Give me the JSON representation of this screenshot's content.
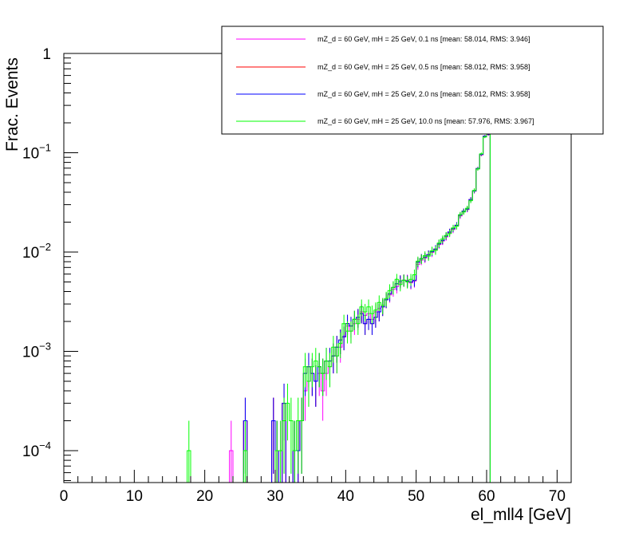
{
  "chart_data": {
    "type": "histogram",
    "xlabel": "el_mll4 [GeV]",
    "ylabel": "Frac. Events",
    "xlim": [
      0,
      72
    ],
    "ylim": [
      5e-05,
      1.2
    ],
    "yscale": "log",
    "x_ticks": [
      "0",
      "10",
      "20",
      "30",
      "40",
      "50",
      "60",
      "70"
    ],
    "y_ticks": [
      {
        "mantissa": "1",
        "exp": ""
      },
      {
        "mantissa": "10",
        "exp": "−1"
      },
      {
        "mantissa": "10",
        "exp": "−2"
      },
      {
        "mantissa": "10",
        "exp": "−3"
      },
      {
        "mantissa": "10",
        "exp": "−4"
      }
    ],
    "bin_edges_start": 0,
    "bin_width": 0.5,
    "legend": {
      "position": "top-right",
      "entries": [
        {
          "label": "mZ_d = 60 GeV, mH = 25 GeV, 0.1 ns [mean: 58.014, RMS: 3.946]",
          "color": "#ff00ff"
        },
        {
          "label": "mZ_d = 60 GeV, mH = 25 GeV, 0.5 ns [mean: 58.012, RMS: 3.958]",
          "color": "#ff0000"
        },
        {
          "label": "mZ_d = 60 GeV, mH = 25 GeV, 2.0 ns [mean: 58.012, RMS: 3.958]",
          "color": "#0000ff"
        },
        {
          "label": "mZ_d = 60 GeV, mH = 25 GeV, 10.0 ns [mean: 57.976, RMS: 3.967]",
          "color": "#00ff00"
        }
      ]
    },
    "series": [
      {
        "name": "0.1 ns",
        "color": "#ff00ff",
        "bins": [
          [
            23.5,
            0.0001
          ],
          [
            25.5,
            0.0002
          ],
          [
            29.5,
            0.0002
          ],
          [
            30.0,
            0.0001
          ],
          [
            30.5,
            0.0001
          ],
          [
            31.0,
            0.0003
          ],
          [
            32.5,
            0.0001
          ],
          [
            33.0,
            0.0001
          ],
          [
            33.5,
            0.0002
          ],
          [
            34.0,
            0.0004
          ],
          [
            34.5,
            0.0005
          ],
          [
            35.0,
            0.0006
          ],
          [
            35.5,
            0.0005
          ],
          [
            36.0,
            0.0006
          ],
          [
            36.5,
            0.0004
          ],
          [
            37.0,
            0.0006
          ],
          [
            37.5,
            0.0007
          ],
          [
            38.0,
            0.0009
          ],
          [
            38.5,
            0.0009
          ],
          [
            39.0,
            0.0011
          ],
          [
            39.5,
            0.0014
          ],
          [
            40.0,
            0.0018
          ],
          [
            40.5,
            0.0016
          ],
          [
            41.0,
            0.0019
          ],
          [
            41.5,
            0.0021
          ],
          [
            42.0,
            0.0025
          ],
          [
            42.5,
            0.0023
          ],
          [
            43.0,
            0.0024
          ],
          [
            43.5,
            0.0021
          ],
          [
            44.0,
            0.0025
          ],
          [
            44.5,
            0.0027
          ],
          [
            45.0,
            0.0029
          ],
          [
            45.5,
            0.0033
          ],
          [
            46.0,
            0.0037
          ],
          [
            46.5,
            0.0042
          ],
          [
            47.0,
            0.0045
          ],
          [
            47.5,
            0.0049
          ],
          [
            48.0,
            0.0052
          ],
          [
            48.5,
            0.0052
          ],
          [
            49.0,
            0.0049
          ],
          [
            49.5,
            0.0051
          ],
          [
            50.0,
            0.0075
          ],
          [
            50.5,
            0.0083
          ],
          [
            51.0,
            0.0087
          ],
          [
            51.5,
            0.0093
          ],
          [
            52.0,
            0.0099
          ],
          [
            52.5,
            0.0105
          ],
          [
            53.0,
            0.0119
          ],
          [
            53.5,
            0.0129
          ],
          [
            54.0,
            0.0142
          ],
          [
            54.5,
            0.0156
          ],
          [
            55.0,
            0.0168
          ],
          [
            55.5,
            0.0185
          ],
          [
            56.0,
            0.0231
          ],
          [
            56.5,
            0.0255
          ],
          [
            57.0,
            0.0268
          ],
          [
            57.5,
            0.0335
          ],
          [
            58.0,
            0.0409
          ],
          [
            58.5,
            0.0689
          ],
          [
            59.0,
            0.0952
          ],
          [
            59.5,
            0.1454
          ],
          [
            60.0,
            0.1524
          ]
        ]
      },
      {
        "name": "0.5 ns",
        "color": "#ff0000",
        "bins": [
          [
            25.5,
            0.0002
          ],
          [
            29.5,
            0.0002
          ],
          [
            30.0,
            0.0001
          ],
          [
            31.0,
            0.0003
          ],
          [
            32.5,
            0.0001
          ],
          [
            33.0,
            0.0001
          ],
          [
            33.5,
            0.0002
          ],
          [
            34.0,
            0.0006
          ],
          [
            34.5,
            0.0007
          ],
          [
            35.0,
            0.0006
          ],
          [
            35.5,
            0.0005
          ],
          [
            36.0,
            0.0007
          ],
          [
            36.5,
            0.0006
          ],
          [
            37.0,
            0.0008
          ],
          [
            37.5,
            0.0008
          ],
          [
            38.0,
            0.0009
          ],
          [
            38.5,
            0.0011
          ],
          [
            39.0,
            0.0013
          ],
          [
            39.5,
            0.0014
          ],
          [
            40.0,
            0.0019
          ],
          [
            40.5,
            0.0018
          ],
          [
            41.0,
            0.0021
          ],
          [
            41.5,
            0.0022
          ],
          [
            42.0,
            0.0024
          ],
          [
            42.5,
            0.0019
          ],
          [
            43.0,
            0.0021
          ],
          [
            43.5,
            0.0019
          ],
          [
            44.0,
            0.0022
          ],
          [
            44.5,
            0.0025
          ],
          [
            45.0,
            0.0028
          ],
          [
            45.5,
            0.0033
          ],
          [
            46.0,
            0.0038
          ],
          [
            46.5,
            0.0044
          ],
          [
            47.0,
            0.0048
          ],
          [
            47.5,
            0.0051
          ],
          [
            48.0,
            0.0052
          ],
          [
            48.5,
            0.0051
          ],
          [
            49.0,
            0.005
          ],
          [
            49.5,
            0.0052
          ],
          [
            50.0,
            0.0079
          ],
          [
            50.5,
            0.0086
          ],
          [
            51.0,
            0.0089
          ],
          [
            51.5,
            0.0094
          ],
          [
            52.0,
            0.0101
          ],
          [
            52.5,
            0.0107
          ],
          [
            53.0,
            0.0121
          ],
          [
            53.5,
            0.0131
          ],
          [
            54.0,
            0.0145
          ],
          [
            54.5,
            0.0159
          ],
          [
            55.0,
            0.0172
          ],
          [
            55.5,
            0.0186
          ],
          [
            56.0,
            0.0235
          ],
          [
            56.5,
            0.0258
          ],
          [
            57.0,
            0.0271
          ],
          [
            57.5,
            0.0338
          ],
          [
            58.0,
            0.0412
          ],
          [
            58.5,
            0.0694
          ],
          [
            59.0,
            0.0962
          ],
          [
            59.5,
            0.1466
          ],
          [
            60.0,
            0.1537
          ]
        ]
      },
      {
        "name": "2.0 ns",
        "color": "#0000ff",
        "bins": [
          [
            25.5,
            0.0002
          ],
          [
            29.5,
            0.0002
          ],
          [
            30.0,
            0.0001
          ],
          [
            31.0,
            0.0003
          ],
          [
            32.5,
            0.0001
          ],
          [
            33.0,
            0.0001
          ],
          [
            33.5,
            0.0002
          ],
          [
            34.0,
            0.0006
          ],
          [
            34.5,
            0.0007
          ],
          [
            35.0,
            0.0006
          ],
          [
            35.5,
            0.0005
          ],
          [
            36.0,
            0.0007
          ],
          [
            36.5,
            0.0006
          ],
          [
            37.0,
            0.0008
          ],
          [
            37.5,
            0.0008
          ],
          [
            38.0,
            0.0009
          ],
          [
            38.5,
            0.0011
          ],
          [
            39.0,
            0.0013
          ],
          [
            39.5,
            0.0014
          ],
          [
            40.0,
            0.0019
          ],
          [
            40.5,
            0.0018
          ],
          [
            41.0,
            0.0021
          ],
          [
            41.5,
            0.0022
          ],
          [
            42.0,
            0.0024
          ],
          [
            42.5,
            0.0019
          ],
          [
            43.0,
            0.0021
          ],
          [
            43.5,
            0.0019
          ],
          [
            44.0,
            0.0022
          ],
          [
            44.5,
            0.0025
          ],
          [
            45.0,
            0.0028
          ],
          [
            45.5,
            0.0033
          ],
          [
            46.0,
            0.0038
          ],
          [
            46.5,
            0.0044
          ],
          [
            47.0,
            0.0048
          ],
          [
            47.5,
            0.0051
          ],
          [
            48.0,
            0.0052
          ],
          [
            48.5,
            0.0051
          ],
          [
            49.0,
            0.005
          ],
          [
            49.5,
            0.0052
          ],
          [
            50.0,
            0.0079
          ],
          [
            50.5,
            0.0086
          ],
          [
            51.0,
            0.0089
          ],
          [
            51.5,
            0.0094
          ],
          [
            52.0,
            0.0101
          ],
          [
            52.5,
            0.0107
          ],
          [
            53.0,
            0.0121
          ],
          [
            53.5,
            0.0131
          ],
          [
            54.0,
            0.0145
          ],
          [
            54.5,
            0.0159
          ],
          [
            55.0,
            0.0172
          ],
          [
            55.5,
            0.0186
          ],
          [
            56.0,
            0.0235
          ],
          [
            56.5,
            0.0258
          ],
          [
            57.0,
            0.0271
          ],
          [
            57.5,
            0.0338
          ],
          [
            58.0,
            0.0412
          ],
          [
            58.5,
            0.0694
          ],
          [
            59.0,
            0.0962
          ],
          [
            59.5,
            0.1466
          ],
          [
            60.0,
            0.1537
          ]
        ]
      },
      {
        "name": "10.0 ns",
        "color": "#00ff00",
        "bins": [
          [
            17.5,
            0.0001
          ],
          [
            25.5,
            0.0001
          ],
          [
            30.0,
            0.0001
          ],
          [
            30.5,
            0.0001
          ],
          [
            31.0,
            0.0002
          ],
          [
            31.5,
            0.0003
          ],
          [
            32.0,
            0.0002
          ],
          [
            32.5,
            0.0001
          ],
          [
            33.0,
            0.0002
          ],
          [
            33.5,
            0.0002
          ],
          [
            34.0,
            0.0007
          ],
          [
            34.5,
            0.0005
          ],
          [
            35.0,
            0.0007
          ],
          [
            35.5,
            0.0008
          ],
          [
            36.0,
            0.0007
          ],
          [
            36.5,
            0.0006
          ],
          [
            37.0,
            0.0008
          ],
          [
            37.5,
            0.0007
          ],
          [
            38.0,
            0.0011
          ],
          [
            38.5,
            0.0009
          ],
          [
            39.0,
            0.0012
          ],
          [
            39.5,
            0.0019
          ],
          [
            40.0,
            0.0016
          ],
          [
            40.5,
            0.0016
          ],
          [
            41.0,
            0.0021
          ],
          [
            41.5,
            0.0019
          ],
          [
            42.0,
            0.0028
          ],
          [
            42.5,
            0.0025
          ],
          [
            43.0,
            0.0028
          ],
          [
            43.5,
            0.0024
          ],
          [
            44.0,
            0.0026
          ],
          [
            44.5,
            0.0031
          ],
          [
            45.0,
            0.0029
          ],
          [
            45.5,
            0.0034
          ],
          [
            46.0,
            0.0041
          ],
          [
            46.5,
            0.0044
          ],
          [
            47.0,
            0.0053
          ],
          [
            47.5,
            0.0047
          ],
          [
            48.0,
            0.0052
          ],
          [
            48.5,
            0.005
          ],
          [
            49.0,
            0.0053
          ],
          [
            49.5,
            0.0059
          ],
          [
            50.0,
            0.0081
          ],
          [
            50.5,
            0.0085
          ],
          [
            51.0,
            0.0092
          ],
          [
            51.5,
            0.0091
          ],
          [
            52.0,
            0.0103
          ],
          [
            52.5,
            0.0104
          ],
          [
            53.0,
            0.0123
          ],
          [
            53.5,
            0.0135
          ],
          [
            54.0,
            0.0147
          ],
          [
            54.5,
            0.0154
          ],
          [
            55.0,
            0.0175
          ],
          [
            55.5,
            0.0182
          ],
          [
            56.0,
            0.0238
          ],
          [
            56.5,
            0.0253
          ],
          [
            57.0,
            0.0276
          ],
          [
            57.5,
            0.0329
          ],
          [
            58.0,
            0.0418
          ],
          [
            58.5,
            0.0686
          ],
          [
            59.0,
            0.0975
          ],
          [
            59.5,
            0.1442
          ],
          [
            60.0,
            0.1566
          ]
        ]
      }
    ]
  }
}
